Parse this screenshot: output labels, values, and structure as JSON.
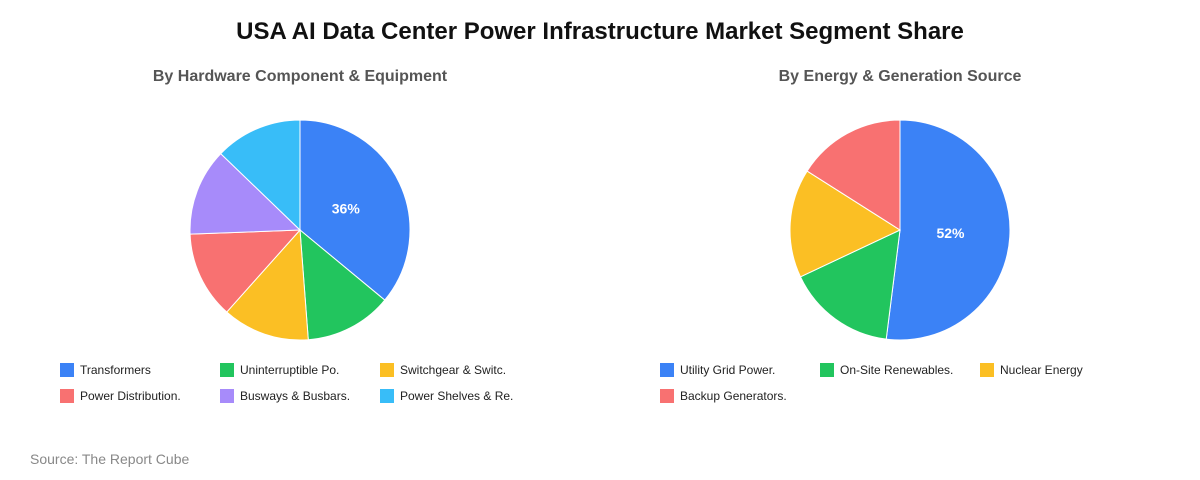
{
  "title": "USA AI Data Center Power Infrastructure Market Segment Share",
  "source": "Source: The Report Cube",
  "chart_data": [
    {
      "type": "pie",
      "title": "By Hardware Component & Equipment",
      "legend_position": "bottom",
      "slices": [
        {
          "label": "Transformers",
          "value": 36,
          "color": "#3B82F6",
          "show_label": true
        },
        {
          "label": "Uninterruptible Po.",
          "value": 12.8,
          "color": "#22C55E",
          "show_label": false
        },
        {
          "label": "Switchgear & Switc.",
          "value": 12.8,
          "color": "#FBBF24",
          "show_label": false
        },
        {
          "label": "Power Distribution.",
          "value": 12.8,
          "color": "#F87171",
          "show_label": false
        },
        {
          "label": "Busways & Busbars.",
          "value": 12.8,
          "color": "#A78BFA",
          "show_label": false
        },
        {
          "label": "Power Shelves & Re.",
          "value": 12.8,
          "color": "#38BDF8",
          "show_label": false
        }
      ]
    },
    {
      "type": "pie",
      "title": "By Energy & Generation Source",
      "legend_position": "bottom",
      "slices": [
        {
          "label": "Utility Grid Power.",
          "value": 52,
          "color": "#3B82F6",
          "show_label": true
        },
        {
          "label": "On-Site Renewables.",
          "value": 16,
          "color": "#22C55E",
          "show_label": false
        },
        {
          "label": "Nuclear Energy",
          "value": 16,
          "color": "#FBBF24",
          "show_label": false
        },
        {
          "label": "Backup Generators.",
          "value": 16,
          "color": "#F87171",
          "show_label": false
        }
      ]
    }
  ]
}
